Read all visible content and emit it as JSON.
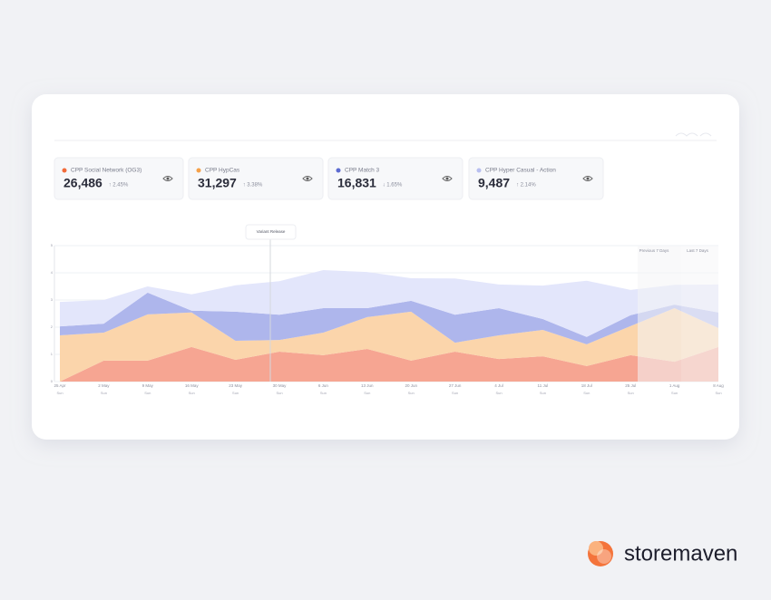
{
  "cards": [
    {
      "label": "CPP Social Network (OG3)",
      "value": "26,486",
      "change": "↑ 2.45%",
      "color": "#f26b3a"
    },
    {
      "label": "CPP HypCas",
      "value": "31,297",
      "change": "↑ 3.38%",
      "color": "#f5a14a"
    },
    {
      "label": "CPP Match 3",
      "value": "16,831",
      "change": "↓ 1.65%",
      "color": "#5c6bd1"
    },
    {
      "label": "CPP Hyper Casual - Action",
      "value": "9,487",
      "change": "↑ 2.14%",
      "color": "#b8bff0"
    }
  ],
  "chart_data": {
    "type": "area",
    "stacked": true,
    "categories": [
      "25 Apr",
      "2 May",
      "9 May",
      "16 May",
      "23 May",
      "30 May",
      "6 Jun",
      "13 Jun",
      "20 Jun",
      "27 Jun",
      "4 Jul",
      "11 Jul",
      "18 Jul",
      "25 Jul",
      "1 Aug",
      "8 Aug"
    ],
    "x_sublabel": "Sun",
    "annotation": "Variant Release",
    "period_labels": [
      "Previous 7 Days",
      "Last 7 Days"
    ],
    "ylim": [
      0,
      5
    ],
    "yticks": [
      0,
      1,
      2,
      3,
      4,
      5
    ],
    "grid": true,
    "series": [
      {
        "name": "CPP Social Network (OG3)",
        "color": "#f6a592",
        "values": [
          0,
          0.77,
          0.77,
          1.27,
          0.8,
          1.1,
          0.97,
          1.2,
          0.77,
          1.1,
          0.83,
          0.93,
          0.57,
          0.97,
          0.73,
          1.27
        ]
      },
      {
        "name": "CPP HypCas",
        "color": "#fbd5ab",
        "values": [
          1.7,
          1.03,
          1.7,
          1.27,
          0.7,
          0.43,
          0.83,
          1.17,
          1.8,
          0.33,
          0.87,
          0.97,
          0.8,
          1.07,
          1.97,
          0.7
        ]
      },
      {
        "name": "CPP Match 3",
        "color": "#aeb6ec",
        "values": [
          0.33,
          0.33,
          0.8,
          0.07,
          1.07,
          0.93,
          0.9,
          0.33,
          0.4,
          1.03,
          1.0,
          0.4,
          0.27,
          0.4,
          0.13,
          0.57
        ]
      },
      {
        "name": "CPP Hyper Casual - Action",
        "color": "#e3e6fb",
        "values": [
          0.9,
          0.87,
          0.23,
          0.6,
          0.97,
          1.23,
          1.4,
          1.33,
          0.83,
          1.33,
          0.87,
          1.23,
          2.07,
          0.93,
          0.73,
          1.03
        ]
      }
    ]
  },
  "brand": "storemaven"
}
